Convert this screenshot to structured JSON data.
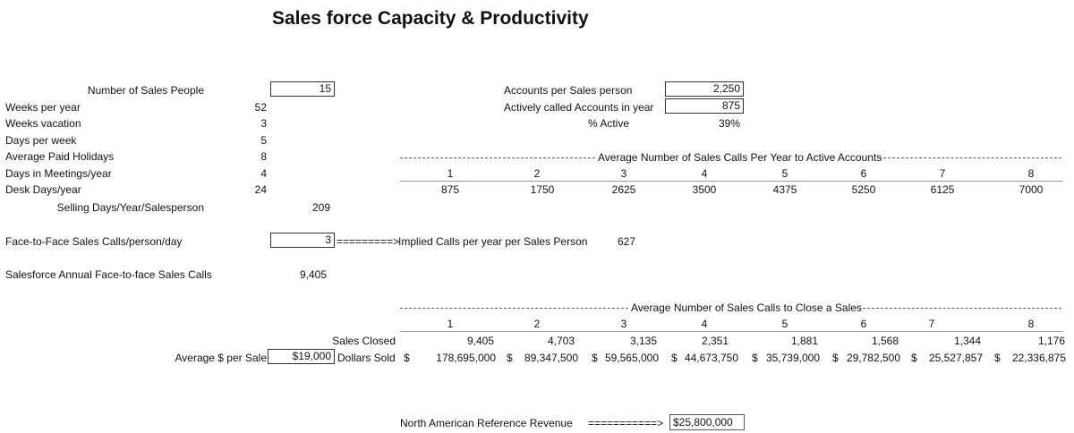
{
  "title": "Sales force Capacity & Productivity",
  "left": {
    "num_sales_people_label": "Number of Sales People",
    "num_sales_people_value": "15",
    "rows": [
      {
        "label": "Weeks per year",
        "value": "52"
      },
      {
        "label": "Weeks vacation",
        "value": "3"
      },
      {
        "label": "Days per week",
        "value": "5"
      },
      {
        "label": "Average Paid Holidays",
        "value": "8"
      },
      {
        "label": "Days in Meetings/year",
        "value": "4"
      },
      {
        "label": "Desk Days/year",
        "value": "24"
      }
    ],
    "selling_days_label": "Selling Days/Year/Salesperson",
    "selling_days_value": "209",
    "f2f_label": "Face-to-Face Sales Calls/person/day",
    "f2f_value": "3",
    "arrow1": "=========>",
    "implied_label": "Implied Calls per year per Sales Person",
    "implied_value": "627",
    "annual_label": "Salesforce Annual Face-to-face Sales Calls",
    "annual_value": "9,405",
    "avg_per_sale_label": "Average $ per Sale",
    "avg_per_sale_value": "$19,000"
  },
  "right": {
    "accounts_per_label": "Accounts per Sales person",
    "accounts_per_value": "2,250",
    "active_called_label": "Actively called Accounts in year",
    "active_called_value": "875",
    "pct_active_label": "% Active",
    "pct_active_value": "39%"
  },
  "table1": {
    "header": "Average Number of Sales Calls Per Year to Active Accounts",
    "cols": [
      "1",
      "2",
      "3",
      "4",
      "5",
      "6",
      "7",
      "8"
    ],
    "values": [
      "875",
      "1750",
      "2625",
      "3500",
      "4375",
      "5250",
      "6125",
      "7000"
    ]
  },
  "table2": {
    "header": "Average Number of Sales Calls to Close a Sales",
    "cols": [
      "1",
      "2",
      "3",
      "4",
      "5",
      "6",
      "7",
      "8"
    ],
    "sales_closed_label": "Sales Closed",
    "sales_closed": [
      "9,405",
      "4,703",
      "3,135",
      "2,351",
      "1,881",
      "1,568",
      "1,344",
      "1,176"
    ],
    "dollars_sold_label": "Dollars Sold",
    "currency": "$",
    "dollars_sold": [
      "178,695,000",
      "89,347,500",
      "59,565,000",
      "44,673,750",
      "35,739,000",
      "29,782,500",
      "25,527,857",
      "22,336,875"
    ]
  },
  "reference": {
    "label": "North American Reference Revenue",
    "arrow": "===========>",
    "value": "$25,800,000"
  }
}
